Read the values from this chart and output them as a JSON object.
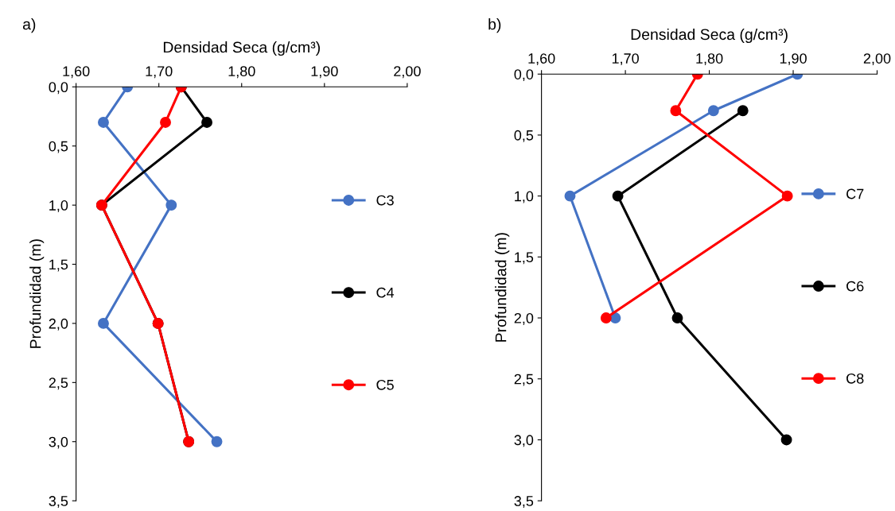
{
  "chart_data": [
    {
      "type": "line",
      "annotations": [
        "a)"
      ],
      "xlabel": "Densidad Seca (g/cm³)",
      "ylabel": "Profundidad (m)",
      "marker": "circle",
      "line_style": "solid",
      "grid": false,
      "legend": "right",
      "xlim": [
        1.6,
        2.0
      ],
      "xticks": [
        {
          "value": 1.6,
          "label": "1,60"
        },
        {
          "value": 1.7,
          "label": "1,70"
        },
        {
          "value": 1.8,
          "label": "1,80"
        },
        {
          "value": 1.9,
          "label": "1,90"
        },
        {
          "value": 2.0,
          "label": "2,00"
        }
      ],
      "ylim": [
        3.5,
        0
      ],
      "yticks": [
        {
          "value": 0,
          "label": "0,0"
        },
        {
          "value": 0.5,
          "label": "0,5"
        },
        {
          "value": 1,
          "label": "1,0"
        },
        {
          "value": 1.5,
          "label": "1,5"
        },
        {
          "value": 2,
          "label": "2,0"
        },
        {
          "value": 2.5,
          "label": "2,5"
        },
        {
          "value": 3,
          "label": "3,0"
        },
        {
          "value": 3.5,
          "label": "3,5"
        }
      ],
      "series": [
        {
          "name": "C3",
          "color": "#4472c4",
          "x": [
            1.662,
            1.633,
            1.715,
            1.633,
            1.77
          ],
          "values": [
            0,
            0.3,
            1,
            2,
            3
          ]
        },
        {
          "name": "C4",
          "color": "#000000",
          "x": [
            1.727,
            1.758,
            1.631,
            1.699,
            1.736
          ],
          "values": [
            0,
            0.3,
            1,
            2,
            3
          ]
        },
        {
          "name": "C5",
          "color": "#ff0000",
          "x": [
            1.727,
            1.708,
            1.631,
            1.699,
            1.736
          ],
          "values": [
            0,
            0.3,
            1,
            2,
            3
          ]
        }
      ]
    },
    {
      "type": "line",
      "annotations": [
        "b)"
      ],
      "xlabel": "Densidad Seca (g/cm³)",
      "ylabel": "Profundidad (m)",
      "marker": "circle",
      "line_style": "solid",
      "grid": false,
      "legend": "right",
      "xlim": [
        1.6,
        2.0
      ],
      "xticks": [
        {
          "value": 1.6,
          "label": "1,60"
        },
        {
          "value": 1.7,
          "label": "1,70"
        },
        {
          "value": 1.8,
          "label": "1,80"
        },
        {
          "value": 1.9,
          "label": "1,90"
        },
        {
          "value": 2.0,
          "label": "2,00"
        }
      ],
      "ylim": [
        3.5,
        0
      ],
      "yticks": [
        {
          "value": 0,
          "label": "0,0"
        },
        {
          "value": 0.5,
          "label": "0,5"
        },
        {
          "value": 1,
          "label": "1,0"
        },
        {
          "value": 1.5,
          "label": "1,5"
        },
        {
          "value": 2,
          "label": "2,0"
        },
        {
          "value": 2.5,
          "label": "2,5"
        },
        {
          "value": 3,
          "label": "3,0"
        },
        {
          "value": 3.5,
          "label": "3,5"
        }
      ],
      "series": [
        {
          "name": "C7",
          "color": "#4472c4",
          "x": [
            1.905,
            1.805,
            1.634,
            1.688
          ],
          "values": [
            0,
            0.3,
            1,
            2
          ]
        },
        {
          "name": "C6",
          "color": "#000000",
          "x": [
            1.84,
            1.691,
            1.762,
            1.892
          ],
          "values": [
            0.3,
            1,
            2,
            3
          ]
        },
        {
          "name": "C8",
          "color": "#ff0000",
          "x": [
            1.786,
            1.76,
            1.893,
            1.677
          ],
          "values": [
            0,
            0.3,
            1,
            2
          ]
        }
      ]
    }
  ]
}
